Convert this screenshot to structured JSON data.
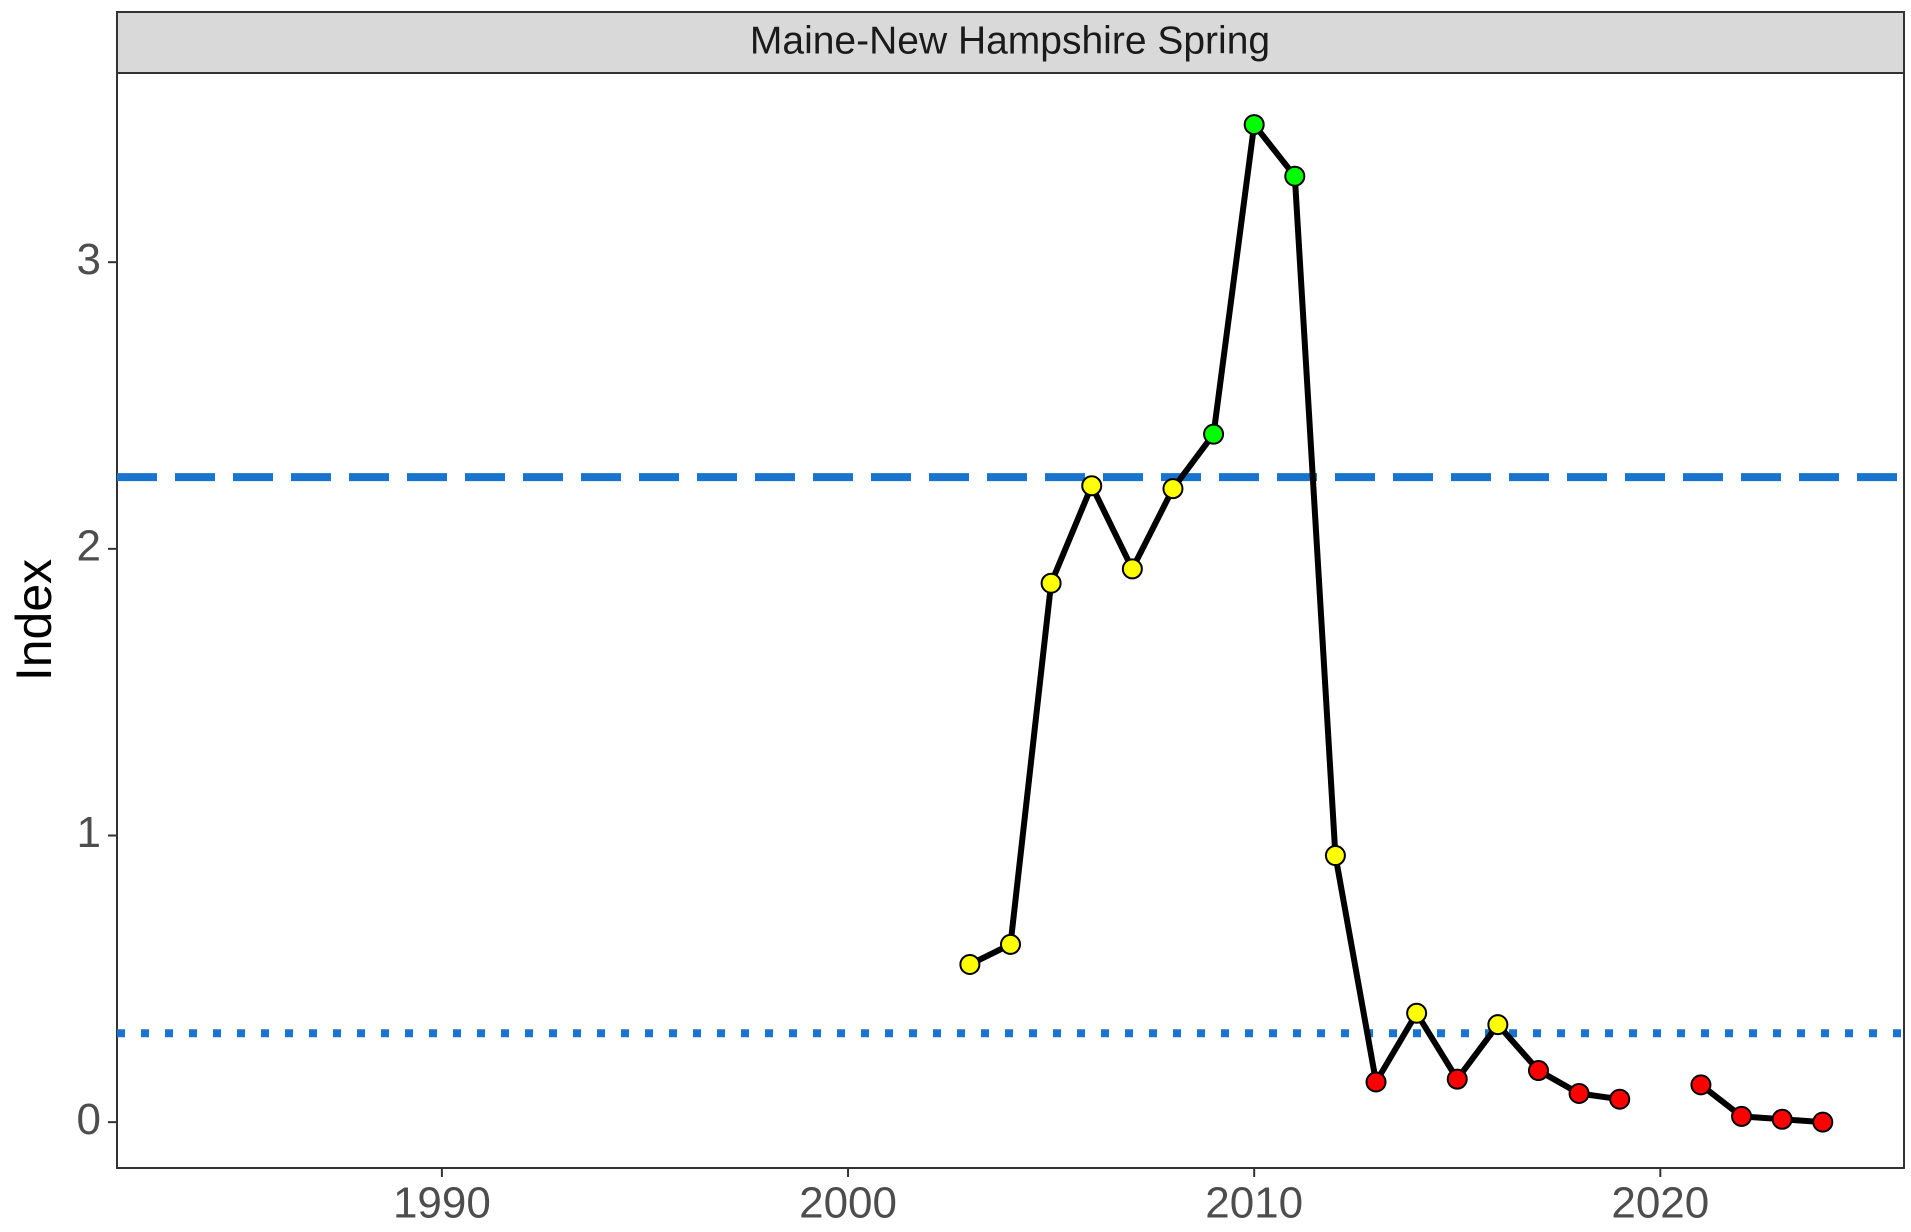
{
  "chart_data": {
    "type": "line",
    "title": "Maine-New Hampshire Spring",
    "y_label": "Index",
    "x": [
      2003,
      2004,
      2005,
      2006,
      2007,
      2008,
      2009,
      2010,
      2011,
      2012,
      2013,
      2014,
      2015,
      2016,
      2017,
      2018,
      2019,
      2020,
      2021,
      2022,
      2023,
      2024
    ],
    "values": [
      0.55,
      0.62,
      1.88,
      2.22,
      1.93,
      2.21,
      2.4,
      3.48,
      3.3,
      0.93,
      0.14,
      0.38,
      0.15,
      0.34,
      0.18,
      0.1,
      0.08,
      null,
      0.13,
      0.02,
      0.01,
      0.0
    ],
    "color": "#000000",
    "point_colors": [
      "#ffff00",
      "#ffff00",
      "#ffff00",
      "#ffff00",
      "#ffff00",
      "#ffff00",
      "#00ff00",
      "#00ff00",
      "#00ff00",
      "#ffff00",
      "#ff0000",
      "#ffff00",
      "#ff0000",
      "#ffff00",
      "#ff0000",
      "#ff0000",
      "#ff0000",
      null,
      "#ff0000",
      "#ff0000",
      "#ff0000",
      "#ff0000"
    ],
    "hlines": [
      {
        "value": 2.25,
        "style": "dashed",
        "color": "#1874cd"
      },
      {
        "value": 0.31,
        "style": "dotted",
        "color": "#1874cd"
      }
    ],
    "xlim": [
      1982,
      2026
    ],
    "xticks": [
      1990,
      2000,
      2010,
      2020
    ],
    "ylim": [
      -0.16,
      3.66
    ],
    "yticks": [
      0,
      1,
      2,
      3
    ],
    "grid": false
  }
}
